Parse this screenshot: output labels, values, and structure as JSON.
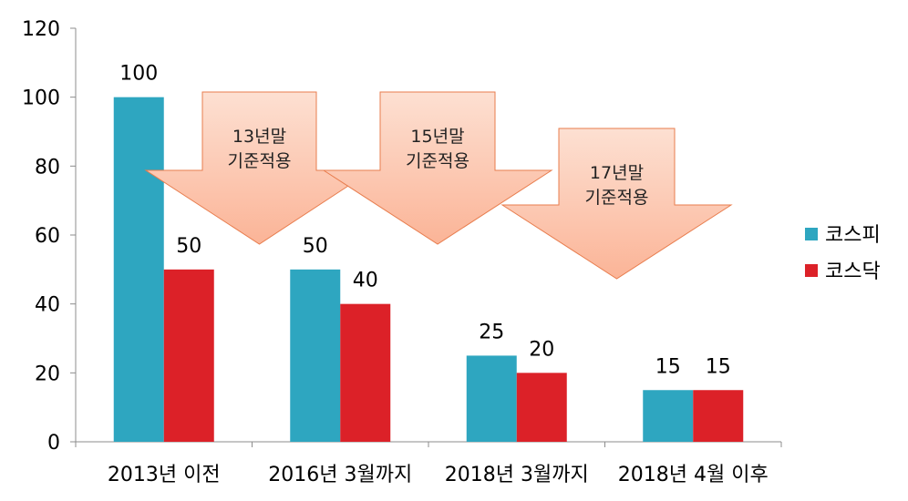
{
  "chart_data": {
    "type": "bar",
    "categories": [
      "2013년 이전",
      "2016년 3월까지",
      "2018년 3월까지",
      "2018년 4월 이후"
    ],
    "series": [
      {
        "name": "코스피",
        "values": [
          100,
          50,
          25,
          15
        ],
        "color": "#2ea6c0"
      },
      {
        "name": "코스닥",
        "values": [
          50,
          40,
          20,
          15
        ],
        "color": "#dc2128"
      }
    ],
    "ylim": [
      0,
      120
    ],
    "yticks": [
      0,
      20,
      40,
      60,
      80,
      100,
      120
    ],
    "legend_position": "right",
    "grid": false,
    "annotations": [
      {
        "line1": "13년말",
        "line2": "기준적용"
      },
      {
        "line1": "15년말",
        "line2": "기준적용"
      },
      {
        "line1": "17년말",
        "line2": "기준적용"
      }
    ],
    "annotation_color": "#fcc6ad",
    "annotation_border": "#e87d4e"
  }
}
